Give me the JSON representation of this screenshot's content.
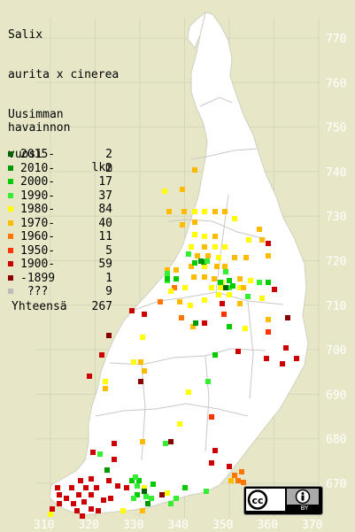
{
  "title": {
    "line1": "Salix",
    "line2": "aurita x cinerea"
  },
  "legend": {
    "heading": [
      "Uusimman",
      "havainnon"
    ],
    "col_year": "vuosi",
    "col_count": "lkm",
    "items": [
      {
        "label": "2015-",
        "count": "2",
        "color": "#006400"
      },
      {
        "label": "2010-",
        "count": "2",
        "color": "#009900"
      },
      {
        "label": "2000-",
        "count": "17",
        "color": "#00cc00"
      },
      {
        "label": "1990-",
        "count": "37",
        "color": "#33ee33"
      },
      {
        "label": "1980-",
        "count": "84",
        "color": "#ffff00"
      },
      {
        "label": "1970-",
        "count": "40",
        "color": "#ffbb00"
      },
      {
        "label": "1960-",
        "count": "11",
        "color": "#ff7700"
      },
      {
        "label": "1950-",
        "count": "5",
        "color": "#ff3300"
      },
      {
        "label": "1900-",
        "count": "59",
        "color": "#cc0000"
      },
      {
        "label": "-1899",
        "count": "1",
        "color": "#880000"
      },
      {
        "label": " ???",
        "count": "9",
        "color": "#bbbbbb"
      }
    ],
    "total_label": "Yhteensä",
    "total_count": "267"
  },
  "axes": {
    "y_labels": [
      "770",
      "760",
      "750",
      "740",
      "730",
      "720",
      "710",
      "700",
      "690",
      "680",
      "670"
    ],
    "x_labels": [
      "310",
      "320",
      "330",
      "340",
      "350",
      "360",
      "370"
    ]
  },
  "colors": {
    "background": "#e7e7c8",
    "land": "#ffffff",
    "grid": "#d6d6bb",
    "border": "#c8c8c8",
    "axis_text": "#ffffff"
  },
  "license_badge": {
    "icons": [
      "cc-icon",
      "by-icon"
    ],
    "text": "BY"
  }
}
